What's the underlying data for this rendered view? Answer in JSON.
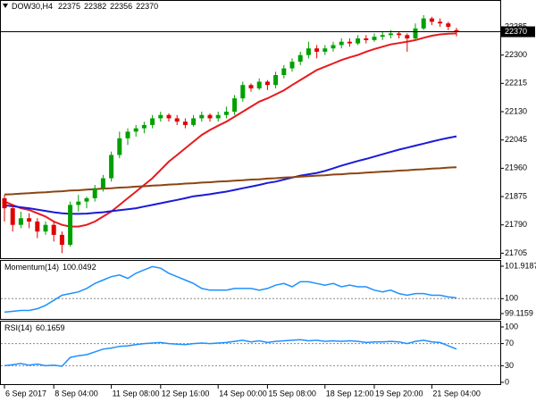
{
  "header": {
    "symbol": "DOW30,H4"
  },
  "chart_data": [
    {
      "type": "candlestick",
      "categories": [
        "6 Sep 2017",
        null,
        null,
        null,
        null,
        null,
        "8 Sep 04:00",
        null,
        null,
        null,
        null,
        null,
        null,
        "11 Sep 08:00",
        null,
        null,
        null,
        null,
        null,
        "12 Sep 16:00",
        null,
        null,
        null,
        null,
        null,
        null,
        "14 Sep 00:00",
        null,
        null,
        null,
        null,
        null,
        "15 Sep 08:00",
        null,
        null,
        null,
        null,
        null,
        null,
        "18 Sep 12:00",
        null,
        null,
        null,
        null,
        null,
        "19 Sep 20:00",
        null,
        null,
        null,
        null,
        null,
        null,
        "21 Sep 04:00",
        null,
        null,
        null
      ],
      "candles": [
        [
          21870,
          21880,
          21800,
          21840
        ],
        [
          21840,
          21850,
          21770,
          21790
        ],
        [
          21790,
          21830,
          21780,
          21810
        ],
        [
          21810,
          21825,
          21780,
          21800
        ],
        [
          21800,
          21810,
          21750,
          21770
        ],
        [
          21770,
          21800,
          21760,
          21790
        ],
        [
          21790,
          21800,
          21740,
          21760
        ],
        [
          21760,
          21770,
          21705,
          21730
        ],
        [
          21730,
          21860,
          21725,
          21850
        ],
        [
          21850,
          21880,
          21830,
          21860
        ],
        [
          21860,
          21875,
          21840,
          21870
        ],
        [
          21870,
          21910,
          21860,
          21900
        ],
        [
          21900,
          21940,
          21890,
          21930
        ],
        [
          21930,
          22010,
          21920,
          22000
        ],
        [
          22000,
          22070,
          21990,
          22050
        ],
        [
          22050,
          22080,
          22030,
          22070
        ],
        [
          22070,
          22090,
          22055,
          22080
        ],
        [
          22080,
          22100,
          22065,
          22090
        ],
        [
          22090,
          22120,
          22080,
          22110
        ],
        [
          22110,
          22130,
          22100,
          22120
        ],
        [
          22120,
          22125,
          22100,
          22110
        ],
        [
          22110,
          22120,
          22090,
          22100
        ],
        [
          22100,
          22110,
          22080,
          22090
        ],
        [
          22090,
          22120,
          22085,
          22110
        ],
        [
          22110,
          22130,
          22100,
          22120
        ],
        [
          22120,
          22125,
          22100,
          22110
        ],
        [
          22110,
          22130,
          22100,
          22120
        ],
        [
          22120,
          22145,
          22110,
          22130
        ],
        [
          22130,
          22180,
          22120,
          22170
        ],
        [
          22170,
          22220,
          22160,
          22210
        ],
        [
          22210,
          22215,
          22190,
          22200
        ],
        [
          22200,
          22230,
          22195,
          22220
        ],
        [
          22220,
          22225,
          22195,
          22210
        ],
        [
          22210,
          22250,
          22200,
          22240
        ],
        [
          22240,
          22270,
          22230,
          22260
        ],
        [
          22260,
          22290,
          22250,
          22280
        ],
        [
          22280,
          22310,
          22270,
          22300
        ],
        [
          22300,
          22340,
          22290,
          22320
        ],
        [
          22320,
          22330,
          22290,
          22310
        ],
        [
          22310,
          22330,
          22300,
          22320
        ],
        [
          22320,
          22340,
          22310,
          22330
        ],
        [
          22330,
          22350,
          22320,
          22340
        ],
        [
          22340,
          22350,
          22325,
          22335
        ],
        [
          22335,
          22360,
          22330,
          22350
        ],
        [
          22350,
          22360,
          22335,
          22345
        ],
        [
          22345,
          22365,
          22340,
          22355
        ],
        [
          22355,
          22370,
          22345,
          22360
        ],
        [
          22360,
          22375,
          22350,
          22365
        ],
        [
          22365,
          22370,
          22350,
          22360
        ],
        [
          22360,
          22365,
          22310,
          22350
        ],
        [
          22350,
          22395,
          22345,
          22380
        ],
        [
          22380,
          22420,
          22375,
          22410
        ],
        [
          22410,
          22415,
          22390,
          22400
        ],
        [
          22400,
          22410,
          22385,
          22395
        ],
        [
          22395,
          22400,
          22375,
          22385
        ],
        [
          22375,
          22382,
          22356,
          22370
        ]
      ],
      "up_color": "#00a000",
      "down_color": "#e00000",
      "series": [
        {
          "color": "#e8191c",
          "values": [
            21860,
            21850,
            21840,
            21835,
            21825,
            21815,
            21800,
            21790,
            21785,
            21785,
            21790,
            21800,
            21815,
            21830,
            21850,
            21870,
            21890,
            21910,
            21930,
            21955,
            21980,
            22000,
            22020,
            22040,
            22060,
            22075,
            22088,
            22100,
            22115,
            22130,
            22145,
            22160,
            22170,
            22182,
            22194,
            22210,
            22225,
            22240,
            22255,
            22265,
            22275,
            22285,
            22293,
            22300,
            22310,
            22318,
            22325,
            22332,
            22336,
            22340,
            22345,
            22352,
            22358,
            22362,
            22364,
            22365
          ]
        },
        {
          "color": "#1a1ad8",
          "values": [
            21849,
            21846,
            21843,
            21840,
            21836,
            21832,
            21828,
            21825,
            21823,
            21823,
            21824,
            21826,
            21828,
            21831,
            21834,
            21837,
            21840,
            21845,
            21850,
            21855,
            21860,
            21865,
            21870,
            21876,
            21879,
            21882,
            21886,
            21890,
            21895,
            21900,
            21905,
            21910,
            21916,
            21920,
            21926,
            21932,
            21938,
            21942,
            21946,
            21952,
            21960,
            21968,
            21975,
            21982,
            21988,
            21995,
            22002,
            22009,
            22016,
            22022,
            22028,
            22034,
            22040,
            22046,
            22051,
            22056
          ]
        },
        {
          "color": "#8b4513",
          "values": [
            21881,
            21882,
            21884,
            21885,
            21887,
            21888,
            21890,
            21891,
            21893,
            21894,
            21896,
            21897,
            21899,
            21900,
            21902,
            21903,
            21905,
            21906,
            21908,
            21909,
            21911,
            21912,
            21914,
            21915,
            21917,
            21918,
            21920,
            21921,
            21923,
            21924,
            21926,
            21927,
            21929,
            21930,
            21932,
            21933,
            21935,
            21936,
            21938,
            21939,
            21941,
            21942,
            21944,
            21945,
            21947,
            21948,
            21950,
            21951,
            21953,
            21954,
            21956,
            21957,
            21959,
            21960,
            21962,
            21963
          ]
        }
      ],
      "ylim": [
        21690,
        22460
      ],
      "yticks": [
        21705,
        21790,
        21875,
        21960,
        22045,
        22130,
        22215,
        22300,
        22385
      ]
    },
    {
      "type": "line",
      "title": "Momentum(14)",
      "color": "#1e90ff",
      "values": [
        99.2,
        99.25,
        99.3,
        99.3,
        99.4,
        99.6,
        99.9,
        100.2,
        100.3,
        100.4,
        100.6,
        100.9,
        101.1,
        101.3,
        101.4,
        101.2,
        101.5,
        101.7,
        101.9,
        101.8,
        101.5,
        101.3,
        101.1,
        100.9,
        100.6,
        100.5,
        100.5,
        100.5,
        100.6,
        100.6,
        100.6,
        100.5,
        100.6,
        100.8,
        100.9,
        100.7,
        101.0,
        101.0,
        100.9,
        100.8,
        100.9,
        100.7,
        100.8,
        100.7,
        100.7,
        100.5,
        100.4,
        100.5,
        100.3,
        100.2,
        100.3,
        100.3,
        100.2,
        100.2,
        100.1,
        100.0492
      ],
      "ylim": [
        99.1159,
        101.9187
      ],
      "yticks": [
        99.1159,
        100,
        101.9187
      ],
      "levels": [
        100
      ]
    },
    {
      "type": "line",
      "title": "RSI(14)",
      "color": "#1e90ff",
      "values": [
        30,
        32,
        34,
        31,
        33,
        30,
        31,
        29,
        45,
        48,
        50,
        55,
        60,
        62,
        65,
        66,
        68,
        70,
        71,
        72,
        70,
        69,
        68,
        70,
        71,
        70,
        71,
        72,
        74,
        76,
        73,
        75,
        72,
        74,
        75,
        76,
        77,
        75,
        76,
        74,
        75,
        74,
        75,
        74,
        72,
        73,
        73,
        74,
        73,
        70,
        74,
        76,
        73,
        72,
        66,
        60.1659
      ],
      "ylim": [
        0,
        100
      ],
      "yticks": [
        0,
        30,
        70,
        100
      ],
      "levels": [
        30,
        70
      ]
    }
  ]
}
